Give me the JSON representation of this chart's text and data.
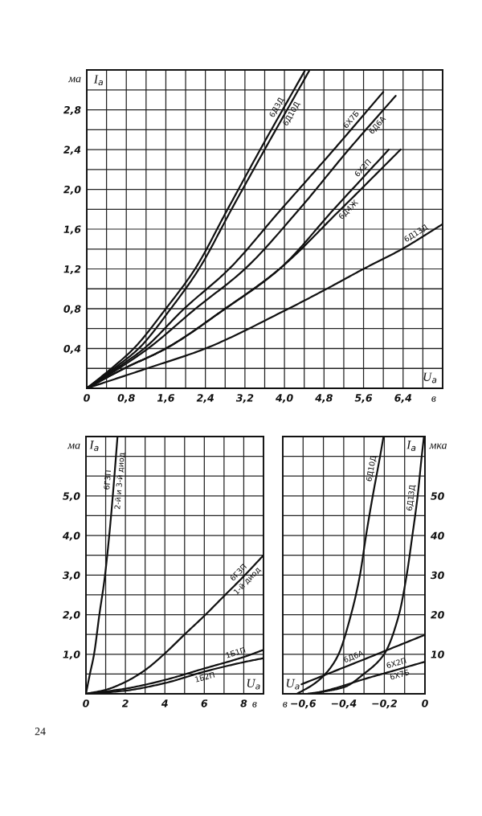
{
  "chart_data": [
    {
      "type": "line",
      "xlabel": "U$_{a}$",
      "ylabel": "I$_{a}$",
      "xlim": [
        0,
        7.2
      ],
      "ylim": [
        0,
        3.2
      ],
      "xticks": [
        0,
        {
          "value": 0.4,
          "label": null
        },
        {
          "value": 0.8,
          "label": "0,8"
        },
        {
          "value": 1.2,
          "label": null
        },
        {
          "value": 1.6,
          "label": "1,6"
        },
        {
          "value": 2.0,
          "label": null
        },
        {
          "value": 2.4,
          "label": "2,4"
        },
        {
          "value": 2.8,
          "label": null
        },
        {
          "value": 3.2,
          "label": "3,2"
        },
        {
          "value": 3.6,
          "label": null
        },
        {
          "value": 4.0,
          "label": "4,0"
        },
        {
          "value": 4.4,
          "label": null
        },
        {
          "value": 4.8,
          "label": "4,8"
        },
        {
          "value": 5.2,
          "label": null
        },
        {
          "value": 5.6,
          "label": "5,6"
        },
        {
          "value": 6.0,
          "label": null
        },
        {
          "value": 6.4,
          "label": "6,4"
        },
        {
          "value": 6.8,
          "label": null
        }
      ],
      "yticks": [
        {
          "value": 0.2,
          "label": null
        },
        {
          "value": 0.4,
          "label": "0,4"
        },
        {
          "value": 0.6,
          "label": null
        },
        {
          "value": 0.8,
          "label": "0,8"
        },
        {
          "value": 1.0,
          "label": null
        },
        {
          "value": 1.2,
          "label": "1,2"
        },
        {
          "value": 1.4,
          "label": null
        },
        {
          "value": 1.6,
          "label": "1,6"
        },
        {
          "value": 1.8,
          "label": null
        },
        {
          "value": 2.0,
          "label": "2,0"
        },
        {
          "value": 2.2,
          "label": null
        },
        {
          "value": 2.4,
          "label": "2,4"
        },
        {
          "value": 2.6,
          "label": null
        },
        {
          "value": 2.8,
          "label": "2,8"
        },
        {
          "value": 3.0,
          "label": null
        }
      ],
      "grid": true,
      "annotations": [
        "ма",
        "в"
      ],
      "series": [
        {
          "name": "6Д3Д",
          "color": "#111111",
          "x": [
            0,
            0.5,
            0.95,
            1.6,
            2.19,
            2.85,
            3.51,
            4.42
          ],
          "values": [
            0,
            0.2,
            0.4,
            0.8,
            1.2,
            1.8,
            2.4,
            3.2
          ]
        },
        {
          "name": "6Д10Д",
          "color": "#111111",
          "x": [
            0,
            0.55,
            1.05,
            1.7,
            2.27,
            2.93,
            3.6,
            4.51
          ],
          "values": [
            0,
            0.2,
            0.4,
            0.8,
            1.2,
            1.8,
            2.4,
            3.2
          ]
        },
        {
          "name": "6Х7Б",
          "color": "#111111",
          "x": [
            0,
            0.6,
            1.16,
            1.97,
            2.88,
            3.9,
            5.0,
            6.0
          ],
          "values": [
            0,
            0.2,
            0.4,
            0.8,
            1.2,
            1.78,
            2.4,
            2.98
          ]
        },
        {
          "name": "6Д6А",
          "color": "#111111",
          "x": [
            0,
            0.65,
            1.24,
            2.2,
            3.2,
            4.3,
            5.3,
            6.25
          ],
          "values": [
            0,
            0.2,
            0.4,
            0.8,
            1.2,
            1.8,
            2.4,
            2.94
          ]
        },
        {
          "name": "6Х2П",
          "color": "#111111",
          "x": [
            0,
            0.76,
            1.6,
            2.8,
            3.9,
            5.0,
            6.11
          ],
          "values": [
            0,
            0.2,
            0.4,
            0.8,
            1.2,
            1.8,
            2.4
          ]
        },
        {
          "name": "6Д4Ж",
          "color": "#111111",
          "x": [
            0,
            0.76,
            1.6,
            2.8,
            3.9,
            5.1,
            6.35
          ],
          "values": [
            0,
            0.2,
            0.4,
            0.8,
            1.2,
            1.78,
            2.4
          ]
        },
        {
          "name": "6Д13Д",
          "color": "#111111",
          "x": [
            0,
            1.22,
            2.4,
            4.0,
            4.78,
            5.6,
            6.38,
            7.2
          ],
          "values": [
            0,
            0.2,
            0.4,
            0.78,
            0.98,
            1.2,
            1.4,
            1.65
          ]
        }
      ]
    },
    {
      "type": "line",
      "xlabel": "U$_{a}$",
      "ylabel": "I$_{a}$",
      "xlim": [
        0,
        9
      ],
      "ylim": [
        0,
        6.5
      ],
      "xticks": [
        0,
        {
          "value": 1,
          "label": null
        },
        2,
        {
          "value": 3,
          "label": null
        },
        4,
        {
          "value": 5,
          "label": null
        },
        6,
        {
          "value": 7,
          "label": null
        },
        8
      ],
      "yticks": [
        {
          "value": 0.5,
          "label": null
        },
        {
          "value": 1.0,
          "label": "1,0"
        },
        {
          "value": 1.5,
          "label": null
        },
        {
          "value": 2.0,
          "label": "2,0"
        },
        {
          "value": 2.5,
          "label": null
        },
        {
          "value": 3.0,
          "label": "3,0"
        },
        {
          "value": 3.5,
          "label": null
        },
        {
          "value": 4.0,
          "label": "4,0"
        },
        {
          "value": 4.5,
          "label": null
        },
        {
          "value": 5.0,
          "label": "5,0"
        },
        {
          "value": 5.5,
          "label": null
        },
        {
          "value": 6.0,
          "label": null
        }
      ],
      "grid": true,
      "annotations": [
        "ма",
        "в",
        "24"
      ],
      "series": [
        {
          "name": "6Г3П\n2-й и 3-й диод",
          "color": "#111111",
          "x": [
            0,
            0.2,
            0.41,
            0.68,
            0.95,
            1.18,
            1.36,
            1.6
          ],
          "values": [
            0,
            0.5,
            1.0,
            2.0,
            2.93,
            4.0,
            5.0,
            6.5
          ]
        },
        {
          "name": "6Г3П\n1-й диод",
          "color": "#111111",
          "x": [
            0,
            1,
            2,
            3,
            4,
            5,
            6,
            7,
            8,
            9
          ],
          "values": [
            0,
            0.1,
            0.3,
            0.6,
            1.02,
            1.5,
            1.97,
            2.47,
            2.97,
            3.5
          ]
        },
        {
          "name": "1Б1П",
          "color": "#111111",
          "x": [
            0,
            2,
            4,
            6,
            8,
            9
          ],
          "values": [
            0,
            0.13,
            0.35,
            0.64,
            0.93,
            1.11
          ]
        },
        {
          "name": "1Б2П",
          "color": "#111111",
          "x": [
            0,
            2,
            4,
            6,
            8,
            9
          ],
          "values": [
            0,
            0.08,
            0.27,
            0.56,
            0.8,
            0.9
          ]
        }
      ]
    },
    {
      "type": "line",
      "xlabel": "U$_{a}$",
      "ylabel": "I$_{a}$",
      "xlim": [
        -0.7,
        0
      ],
      "ylim": [
        0,
        65
      ],
      "xticks": [
        {
          "value": -0.6,
          "label": "−0,6"
        },
        {
          "value": -0.5,
          "label": null
        },
        {
          "value": -0.4,
          "label": "−0,4"
        },
        {
          "value": -0.3,
          "label": null
        },
        {
          "value": -0.2,
          "label": "−0,2"
        },
        {
          "value": -0.1,
          "label": null
        },
        0
      ],
      "yticks": [
        {
          "value": 5,
          "label": null
        },
        10,
        {
          "value": 15,
          "label": null
        },
        20,
        {
          "value": 25,
          "label": null
        },
        30,
        {
          "value": 35,
          "label": null
        },
        40,
        {
          "value": 45,
          "label": null
        },
        50,
        {
          "value": 55,
          "label": null
        },
        {
          "value": 60,
          "label": null
        }
      ],
      "grid": true,
      "annotations": [
        "мка",
        "в"
      ],
      "series": [
        {
          "name": "6Д10Д",
          "color": "#111111",
          "x": [
            -0.63,
            -0.549,
            -0.496,
            -0.43,
            -0.364,
            -0.32,
            -0.29,
            -0.257,
            -0.221,
            -0.204
          ],
          "values": [
            0,
            2.4,
            4.7,
            9.5,
            20,
            30,
            40,
            50,
            60,
            65
          ]
        },
        {
          "name": "6Д13Д",
          "color": "#111111",
          "x": [
            -0.58,
            -0.483,
            -0.397,
            -0.299,
            -0.2,
            -0.128,
            -0.09,
            -0.062,
            -0.036,
            -0.016,
            -0.005
          ],
          "values": [
            0,
            0.7,
            1.7,
            5.1,
            10.1,
            20,
            30,
            40,
            50,
            60,
            65
          ]
        },
        {
          "name": "6Д6А",
          "color": "#111111",
          "x": [
            -0.608,
            -0.3,
            0
          ],
          "values": [
            2.4,
            8.7,
            14.9
          ]
        },
        {
          "name": "6Х2П\n6Х7Б",
          "color": "#111111",
          "x": [
            -0.55,
            -0.45,
            -0.3,
            -0.15,
            0
          ],
          "values": [
            0,
            1.3,
            3.7,
            5.9,
            8.1
          ]
        }
      ]
    }
  ]
}
